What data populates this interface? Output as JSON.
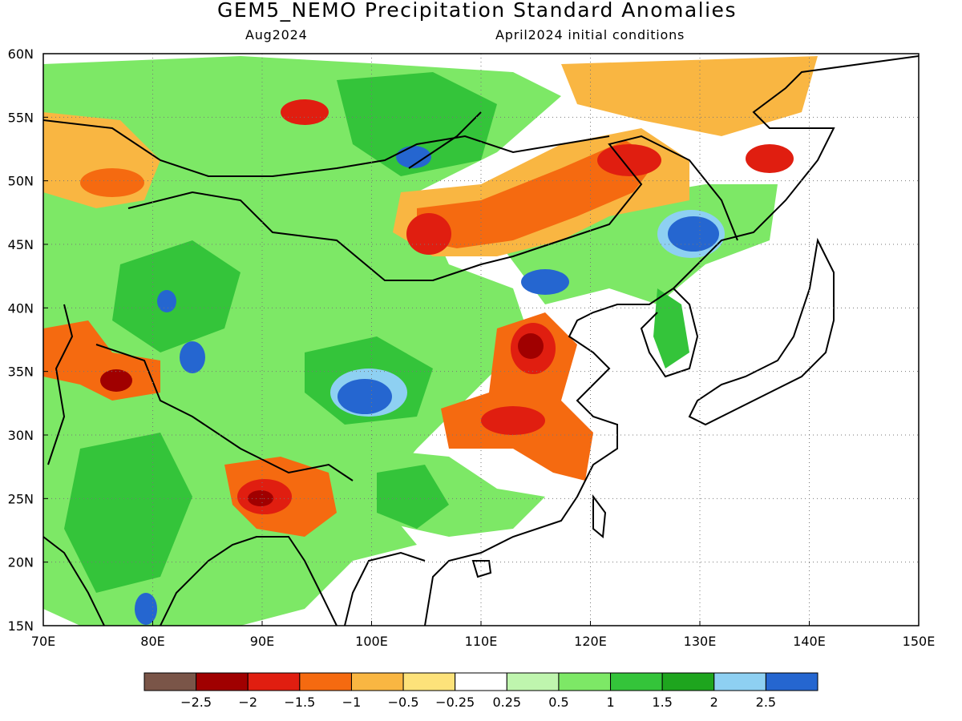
{
  "title": "GEM5_NEMO Precipitation Standard Anomalies",
  "subtitle_left": "Aug2024",
  "subtitle_right": "April2024 initial conditions",
  "map": {
    "lon_range": [
      70,
      150
    ],
    "lat_range": [
      15,
      60
    ],
    "lon_ticks": [
      "70E",
      "80E",
      "90E",
      "100E",
      "110E",
      "120E",
      "130E",
      "140E",
      "150E"
    ],
    "lat_ticks": [
      "15N",
      "20N",
      "25N",
      "30N",
      "35N",
      "40N",
      "45N",
      "50N",
      "55N",
      "60N"
    ],
    "gridlines": "dotted"
  },
  "colorbar": {
    "colors": [
      "#7a5548",
      "#a00000",
      "#e01e10",
      "#f56a10",
      "#f9b642",
      "#fde27a",
      "#ffffff",
      "#bff5ae",
      "#7de866",
      "#34c43a",
      "#1ea51e",
      "#8ed0f2",
      "#2566d0"
    ],
    "labels": [
      "-2.5",
      "-2",
      "-1.5",
      "-1",
      "-0.5",
      "-0.25",
      "0.25",
      "0.5",
      "1",
      "1.5",
      "2",
      "2.5"
    ]
  },
  "anomaly_regions": [
    {
      "lon": 110,
      "lat": 46,
      "value": -1.5
    },
    {
      "lon": 124,
      "lat": 51,
      "value": -1.5
    },
    {
      "lon": 114,
      "lat": 37,
      "value": -2
    },
    {
      "lon": 113,
      "lat": 30,
      "value": -1.5
    },
    {
      "lon": 92,
      "lat": 25,
      "value": -2
    },
    {
      "lon": 76,
      "lat": 34,
      "value": -2
    },
    {
      "lon": 72,
      "lat": 52,
      "value": -1
    },
    {
      "lon": 130,
      "lat": 46,
      "value": 2.5
    },
    {
      "lon": 103,
      "lat": 33,
      "value": 2.5
    },
    {
      "lon": 104,
      "lat": 52,
      "value": 2.5
    },
    {
      "lon": 121,
      "lat": 42,
      "value": 1.5
    },
    {
      "lon": 84,
      "lat": 38,
      "value": 1.5
    },
    {
      "lon": 80,
      "lat": 22,
      "value": 1.5
    }
  ]
}
